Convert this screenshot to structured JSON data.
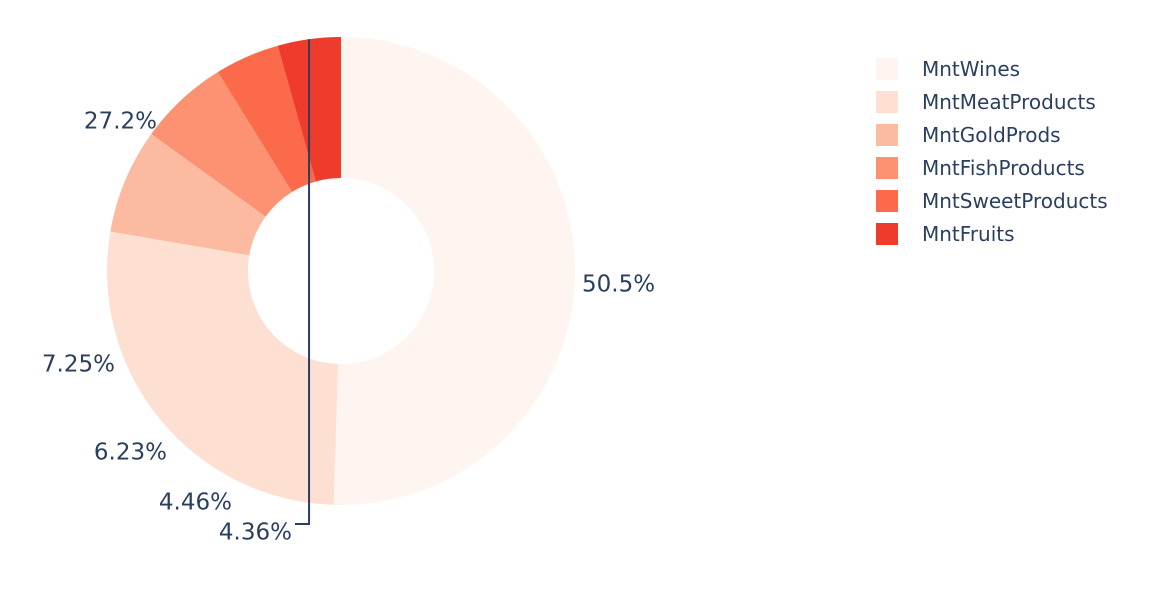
{
  "chart_data": {
    "type": "pie",
    "hole": true,
    "labels": [
      "MntWines",
      "MntMeatProducts",
      "MntGoldProds",
      "MntFishProducts",
      "MntSweetProducts",
      "MntFruits"
    ],
    "values": [
      50.5,
      27.2,
      7.25,
      6.23,
      4.46,
      4.36
    ],
    "text_labels": [
      "50.5%",
      "27.2%",
      "7.25%",
      "6.23%",
      "4.46%",
      "4.36%"
    ],
    "colors": [
      "#fff5f0",
      "#fee0d2",
      "#fcbba1",
      "#fc9272",
      "#fb6a4a",
      "#ef3b2c"
    ],
    "legend_position": "top-right",
    "direction": "clockwise",
    "start_angle": "top"
  }
}
